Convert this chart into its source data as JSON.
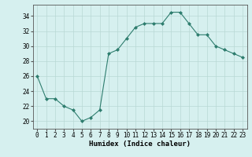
{
  "x": [
    0,
    1,
    2,
    3,
    4,
    5,
    6,
    7,
    8,
    9,
    10,
    11,
    12,
    13,
    14,
    15,
    16,
    17,
    18,
    19,
    20,
    21,
    22,
    23
  ],
  "y": [
    26,
    23,
    23,
    22,
    21.5,
    20,
    20.5,
    21.5,
    29,
    29.5,
    31,
    32.5,
    33,
    33,
    33,
    34.5,
    34.5,
    33,
    31.5,
    31.5,
    30,
    29.5,
    29,
    28.5
  ],
  "line_color": "#2e7d6e",
  "marker": "D",
  "marker_size": 2.0,
  "bg_color": "#d6f0ef",
  "grid_color": "#b8d8d4",
  "xlabel": "Humidex (Indice chaleur)",
  "xlim": [
    -0.5,
    23.5
  ],
  "ylim": [
    19,
    35.5
  ],
  "yticks": [
    20,
    22,
    24,
    26,
    28,
    30,
    32,
    34
  ],
  "xticks": [
    0,
    1,
    2,
    3,
    4,
    5,
    6,
    7,
    8,
    9,
    10,
    11,
    12,
    13,
    14,
    15,
    16,
    17,
    18,
    19,
    20,
    21,
    22,
    23
  ],
  "tick_label_fontsize": 5.5,
  "xlabel_fontsize": 6.5
}
